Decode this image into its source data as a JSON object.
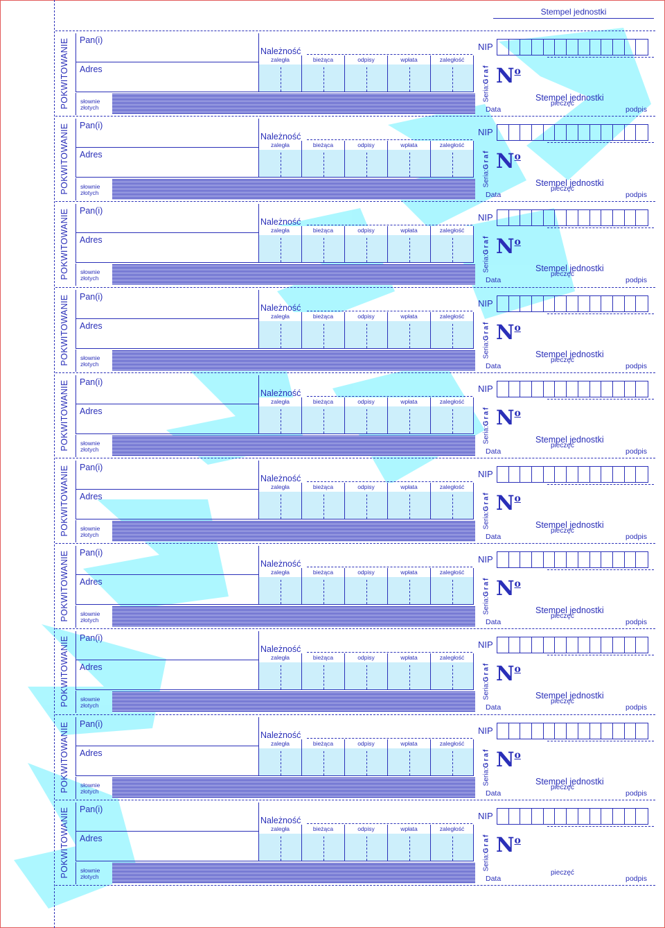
{
  "top_stamp": "Stempel jednostki",
  "receipt": {
    "side_label": "POKWITOWANIE",
    "pan_label": "Pan(i)",
    "adres_label": "Adres",
    "naleznosc_label": "Należność",
    "columns": [
      "zaległa",
      "bieżąca",
      "odpisy",
      "wpłata",
      "zaległość"
    ],
    "slownie_line1": "słownie",
    "slownie_line2": "złotych",
    "nip_label": "NIP",
    "seria_prefix": "Seria:",
    "seria_value": "Graf",
    "number_symbol": "N",
    "number_suffix": "o",
    "stamp_label": "Stempel jednostki",
    "pieczec_label": "pieczęć",
    "data_label": "Data",
    "podpis_label": "podpis"
  },
  "colors": {
    "ink": "#2a2fb8",
    "field_fill": "#cdeffb",
    "frame": "#e25a5a",
    "watermark": "#00e5ff"
  }
}
